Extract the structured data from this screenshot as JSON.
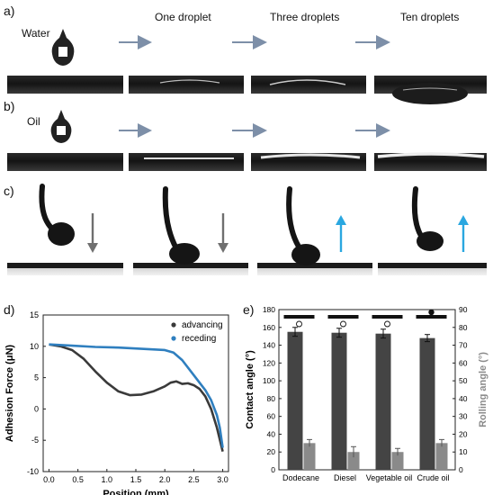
{
  "panel_a": {
    "label": "a)",
    "liquid": "Water",
    "headers": [
      "One droplet",
      "Three droplets",
      "Ten droplets"
    ]
  },
  "panel_b": {
    "label": "b)",
    "liquid": "Oil"
  },
  "panel_c": {
    "label": "c)"
  },
  "panel_d": {
    "label": "d)"
  },
  "panel_e": {
    "label": "e)"
  },
  "colors": {
    "advancing": "#3a3a3a",
    "receding": "#2f7fbf",
    "contact_bar": "#444444",
    "rolling_bar": "#8a8a8a",
    "blue_arrow": "#2aa7e0",
    "grey_arrow": "#6f6f6f",
    "step_arrow": "#7d8fa8"
  },
  "chart_data": [
    {
      "type": "line",
      "xlabel": "Position (mm)",
      "ylabel": "Adhesion Force (μN)",
      "xlim": [
        -0.1,
        3.1
      ],
      "ylim": [
        -10,
        15
      ],
      "xticks": [
        "0.0",
        "0.5",
        "1.0",
        "1.5",
        "2.0",
        "2.5",
        "3.0"
      ],
      "yticks": [
        "-10",
        "-5",
        "0",
        "5",
        "10",
        "15"
      ],
      "legend_position": "top-right",
      "grid": false,
      "series": [
        {
          "name": "advancing",
          "x": [
            0,
            0.2,
            0.4,
            0.6,
            0.8,
            1.0,
            1.2,
            1.4,
            1.6,
            1.8,
            2.0,
            2.1,
            2.2,
            2.3,
            2.4,
            2.5,
            2.6,
            2.7,
            2.8,
            2.9,
            3.0
          ],
          "y": [
            10.3,
            10.0,
            9.4,
            8.0,
            6.0,
            4.2,
            2.8,
            2.2,
            2.3,
            2.8,
            3.6,
            4.2,
            4.4,
            4.0,
            4.1,
            3.8,
            3.2,
            2.0,
            0.0,
            -3.0,
            -6.8
          ]
        },
        {
          "name": "receding",
          "x": [
            0,
            0.4,
            0.8,
            1.2,
            1.6,
            2.0,
            2.15,
            2.3,
            2.5,
            2.7,
            2.8,
            2.9,
            2.95,
            3.0
          ],
          "y": [
            10.3,
            10.1,
            9.9,
            9.8,
            9.6,
            9.4,
            9.0,
            7.8,
            5.4,
            3.0,
            1.4,
            -1.0,
            -3.0,
            -6.2
          ]
        }
      ]
    },
    {
      "type": "bar",
      "categories": [
        "Dodecane",
        "Diesel",
        "Vegetable oil",
        "Crude oil"
      ],
      "ylabel": "Contact angle (°)",
      "y2label": "Rolling angle (°)",
      "ylim": [
        0,
        180
      ],
      "y2lim": [
        0,
        90
      ],
      "yticks": [
        "0",
        "20",
        "40",
        "60",
        "80",
        "100",
        "120",
        "140",
        "160",
        "180"
      ],
      "y2ticks": [
        "0",
        "10",
        "20",
        "30",
        "40",
        "50",
        "60",
        "70",
        "80",
        "90"
      ],
      "series": [
        {
          "name": "Contact angle",
          "axis": "left",
          "values": [
            155,
            154,
            153,
            148
          ],
          "errors": [
            5,
            5,
            5,
            4
          ]
        },
        {
          "name": "Rolling angle",
          "axis": "right",
          "values": [
            15,
            10,
            10,
            15
          ],
          "errors": [
            2,
            3,
            2,
            2
          ]
        }
      ]
    }
  ]
}
